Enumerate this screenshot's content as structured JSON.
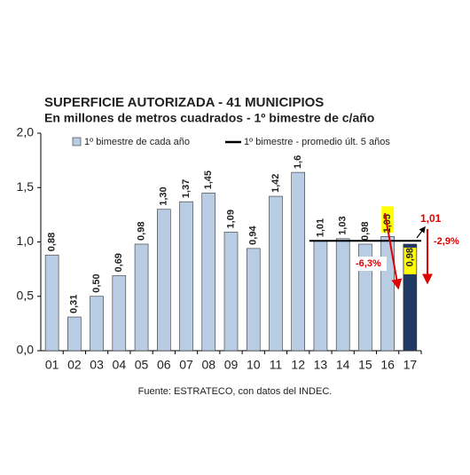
{
  "chart_data": {
    "type": "bar",
    "title": "SUPERFICIE AUTORIZADA - 41 MUNICIPIOS",
    "subtitle": "En millones de metros cuadrados - 1º bimestre de c/año",
    "footnote": "Fuente: ESTRATECO, con datos del INDEC.",
    "categories": [
      "01",
      "02",
      "03",
      "04",
      "05",
      "06",
      "07",
      "08",
      "09",
      "10",
      "11",
      "12",
      "13",
      "14",
      "15",
      "16",
      "17"
    ],
    "series": [
      {
        "name": "1º bimestre de cada año",
        "type": "bar",
        "colors": [
          "#b8cce4",
          "#b8cce4",
          "#b8cce4",
          "#b8cce4",
          "#b8cce4",
          "#b8cce4",
          "#b8cce4",
          "#b8cce4",
          "#b8cce4",
          "#b8cce4",
          "#b8cce4",
          "#b8cce4",
          "#b8cce4",
          "#b8cce4",
          "#b8cce4",
          "#b8cce4",
          "#1f3864"
        ],
        "values": [
          0.88,
          0.31,
          0.5,
          0.69,
          0.98,
          1.3,
          1.37,
          1.45,
          1.09,
          0.94,
          1.42,
          1.64,
          1.01,
          1.03,
          0.98,
          1.05,
          0.98
        ],
        "value_labels": [
          "0,88",
          "0,31",
          "0,50",
          "0,69",
          "0,98",
          "1,30",
          "1,37",
          "1,45",
          "1,09",
          "0,94",
          "1,42",
          "1,6",
          "1,01",
          "1,03",
          "0,98",
          "1,05",
          "0,98"
        ]
      },
      {
        "name": "1º bimestre - promedio últ. 5 años",
        "type": "line",
        "color": "#000000",
        "values": [
          null,
          null,
          null,
          null,
          null,
          null,
          null,
          null,
          null,
          null,
          null,
          null,
          1.01,
          1.01,
          1.01,
          1.01,
          1.01
        ]
      }
    ],
    "annotations": [
      {
        "text": "1,01"
      },
      {
        "text": "-2,9%"
      },
      {
        "text": "-6,3%"
      }
    ],
    "ylim": [
      0,
      2
    ],
    "yticks": [
      {
        "value": 0,
        "label": "0,0"
      },
      {
        "value": 0.5,
        "label": "0,5"
      },
      {
        "value": 1,
        "label": "1,0"
      },
      {
        "value": 1.5,
        "label": "1,5"
      },
      {
        "value": 2,
        "label": "2,0"
      }
    ],
    "grid": false,
    "legend": "top"
  }
}
